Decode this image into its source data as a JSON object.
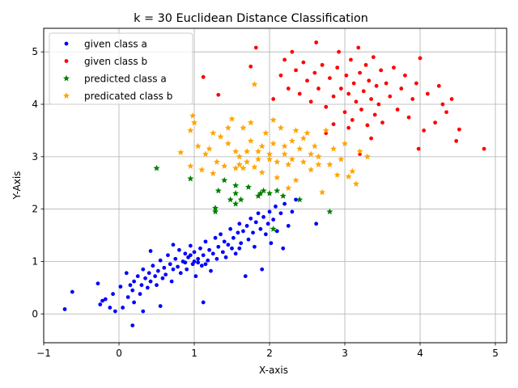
{
  "chart_data": {
    "type": "scatter",
    "title": "k = 30 Euclidean Distance Classification",
    "xlabel": "X-axis",
    "ylabel": "Y-Axis",
    "xlim": [
      -1,
      5.15
    ],
    "ylim": [
      -0.55,
      5.45
    ],
    "xticks": [
      -1,
      0,
      1,
      2,
      3,
      4,
      5
    ],
    "yticks": [
      0,
      1,
      2,
      3,
      4,
      5
    ],
    "xtick_labels": [
      "−1",
      "0",
      "1",
      "2",
      "3",
      "4",
      "5"
    ],
    "ytick_labels": [
      "0",
      "1",
      "2",
      "3",
      "4",
      "5"
    ],
    "grid": true,
    "legend_position": "upper-left",
    "series": [
      {
        "name": "given class a",
        "marker": "dot",
        "color": "#0000ff",
        "points": [
          [
            -0.72,
            0.09
          ],
          [
            -0.62,
            0.42
          ],
          [
            -0.28,
            0.58
          ],
          [
            -0.25,
            0.18
          ],
          [
            -0.22,
            0.25
          ],
          [
            -0.18,
            0.28
          ],
          [
            -0.12,
            0.12
          ],
          [
            -0.08,
            0.38
          ],
          [
            -0.05,
            0.05
          ],
          [
            0.02,
            0.52
          ],
          [
            0.05,
            0.12
          ],
          [
            0.1,
            0.78
          ],
          [
            0.12,
            0.32
          ],
          [
            0.15,
            0.55
          ],
          [
            0.18,
            0.45
          ],
          [
            0.2,
            0.22
          ],
          [
            0.2,
            0.62
          ],
          [
            0.25,
            0.72
          ],
          [
            0.28,
            0.38
          ],
          [
            0.3,
            0.55
          ],
          [
            0.32,
            0.85
          ],
          [
            0.35,
            0.68
          ],
          [
            0.38,
            0.5
          ],
          [
            0.4,
            0.78
          ],
          [
            0.42,
            0.62
          ],
          [
            0.45,
            0.92
          ],
          [
            0.48,
            0.72
          ],
          [
            0.5,
            0.55
          ],
          [
            0.52,
            0.82
          ],
          [
            0.55,
            1.02
          ],
          [
            0.58,
            0.68
          ],
          [
            0.6,
            0.88
          ],
          [
            0.62,
            0.75
          ],
          [
            0.65,
            1.12
          ],
          [
            0.68,
            0.95
          ],
          [
            0.7,
            0.62
          ],
          [
            0.72,
            0.85
          ],
          [
            0.75,
            1.05
          ],
          [
            0.78,
            0.9
          ],
          [
            0.8,
            1.22
          ],
          [
            0.82,
            0.78
          ],
          [
            0.85,
            1.0
          ],
          [
            0.88,
            1.15
          ],
          [
            0.9,
            0.85
          ],
          [
            0.92,
            1.08
          ],
          [
            0.95,
            1.3
          ],
          [
            0.98,
            0.95
          ],
          [
            1.0,
            1.18
          ],
          [
            1.02,
            0.72
          ],
          [
            1.05,
            1.05
          ],
          [
            1.08,
            1.25
          ],
          [
            1.1,
            0.92
          ],
          [
            1.12,
            1.12
          ],
          [
            1.15,
            1.38
          ],
          [
            1.18,
            1.02
          ],
          [
            1.2,
            1.22
          ],
          [
            1.22,
            0.82
          ],
          [
            1.25,
            1.15
          ],
          [
            1.28,
            1.45
          ],
          [
            1.3,
            1.05
          ],
          [
            1.32,
            1.28
          ],
          [
            1.35,
            1.52
          ],
          [
            1.38,
            1.18
          ],
          [
            1.4,
            1.38
          ],
          [
            1.42,
            1.08
          ],
          [
            1.45,
            1.32
          ],
          [
            1.48,
            1.62
          ],
          [
            1.5,
            1.25
          ],
          [
            1.52,
            1.45
          ],
          [
            1.55,
            1.15
          ],
          [
            1.58,
            1.55
          ],
          [
            1.6,
            1.72
          ],
          [
            1.62,
            1.35
          ],
          [
            1.65,
            1.58
          ],
          [
            1.68,
            0.72
          ],
          [
            1.7,
            1.68
          ],
          [
            1.72,
            1.42
          ],
          [
            1.75,
            1.82
          ],
          [
            1.78,
            1.55
          ],
          [
            1.8,
            1.28
          ],
          [
            1.82,
            1.75
          ],
          [
            1.85,
            1.92
          ],
          [
            1.88,
            1.62
          ],
          [
            1.9,
            0.85
          ],
          [
            1.92,
            1.85
          ],
          [
            1.95,
            1.52
          ],
          [
            1.98,
            1.72
          ],
          [
            2.0,
            1.95
          ],
          [
            2.02,
            1.35
          ],
          [
            2.05,
            1.8
          ],
          [
            2.08,
            2.05
          ],
          [
            2.1,
            1.58
          ],
          [
            2.15,
            1.92
          ],
          [
            2.18,
            1.25
          ],
          [
            2.2,
            2.1
          ],
          [
            2.25,
            1.68
          ],
          [
            2.3,
            1.95
          ],
          [
            2.35,
            2.18
          ],
          [
            2.62,
            1.72
          ],
          [
            0.18,
            -0.22
          ],
          [
            0.32,
            0.05
          ],
          [
            0.55,
            0.15
          ],
          [
            1.12,
            0.22
          ],
          [
            0.42,
            1.2
          ],
          [
            0.72,
            1.32
          ],
          [
            1.6,
            1.25
          ],
          [
            1.0,
            1.0
          ],
          [
            1.05,
            0.98
          ],
          [
            0.95,
            1.12
          ],
          [
            1.15,
            0.95
          ],
          [
            0.88,
            0.98
          ]
        ]
      },
      {
        "name": "given class b",
        "marker": "dot",
        "color": "#ff0000",
        "points": [
          [
            1.12,
            4.52
          ],
          [
            1.32,
            4.18
          ],
          [
            1.75,
            4.72
          ],
          [
            1.82,
            5.08
          ],
          [
            2.05,
            4.1
          ],
          [
            2.15,
            4.55
          ],
          [
            2.2,
            4.85
          ],
          [
            2.25,
            4.3
          ],
          [
            2.3,
            5.0
          ],
          [
            2.35,
            4.65
          ],
          [
            2.4,
            4.2
          ],
          [
            2.45,
            4.8
          ],
          [
            2.5,
            4.45
          ],
          [
            2.55,
            4.05
          ],
          [
            2.6,
            4.6
          ],
          [
            2.62,
            5.18
          ],
          [
            2.65,
            4.3
          ],
          [
            2.7,
            4.75
          ],
          [
            2.75,
            3.95
          ],
          [
            2.8,
            4.5
          ],
          [
            2.85,
            4.15
          ],
          [
            2.9,
            4.7
          ],
          [
            2.92,
            5.0
          ],
          [
            2.95,
            4.3
          ],
          [
            3.0,
            3.85
          ],
          [
            3.02,
            4.55
          ],
          [
            3.05,
            4.2
          ],
          [
            3.08,
            4.85
          ],
          [
            3.1,
            3.7
          ],
          [
            3.12,
            4.4
          ],
          [
            3.15,
            4.05
          ],
          [
            3.18,
            5.08
          ],
          [
            3.2,
            4.6
          ],
          [
            3.22,
            3.9
          ],
          [
            3.25,
            4.25
          ],
          [
            3.28,
            4.75
          ],
          [
            3.3,
            3.6
          ],
          [
            3.32,
            4.45
          ],
          [
            3.35,
            4.1
          ],
          [
            3.38,
            4.9
          ],
          [
            3.4,
            3.8
          ],
          [
            3.42,
            4.35
          ],
          [
            3.45,
            4.0
          ],
          [
            3.48,
            4.65
          ],
          [
            3.5,
            3.65
          ],
          [
            3.55,
            4.4
          ],
          [
            3.6,
            4.15
          ],
          [
            3.65,
            4.7
          ],
          [
            3.7,
            3.9
          ],
          [
            3.75,
            4.3
          ],
          [
            3.8,
            4.55
          ],
          [
            3.85,
            3.75
          ],
          [
            3.9,
            4.1
          ],
          [
            3.95,
            4.4
          ],
          [
            3.98,
            3.15
          ],
          [
            4.0,
            4.88
          ],
          [
            4.05,
            3.5
          ],
          [
            4.1,
            4.2
          ],
          [
            4.2,
            3.65
          ],
          [
            4.25,
            4.35
          ],
          [
            4.3,
            4.0
          ],
          [
            4.35,
            3.85
          ],
          [
            4.42,
            4.1
          ],
          [
            4.48,
            3.3
          ],
          [
            4.52,
            3.52
          ],
          [
            4.85,
            3.15
          ],
          [
            3.2,
            3.05
          ],
          [
            2.85,
            3.62
          ],
          [
            2.75,
            3.45
          ],
          [
            3.05,
            3.55
          ],
          [
            3.35,
            3.35
          ]
        ]
      },
      {
        "name": "predicted class a",
        "marker": "star",
        "color": "#008000",
        "points": [
          [
            0.5,
            2.78
          ],
          [
            0.95,
            2.58
          ],
          [
            1.28,
            1.95
          ],
          [
            1.28,
            2.02
          ],
          [
            1.32,
            2.35
          ],
          [
            1.4,
            2.55
          ],
          [
            1.48,
            2.18
          ],
          [
            1.55,
            2.1
          ],
          [
            1.55,
            2.3
          ],
          [
            1.55,
            2.45
          ],
          [
            1.62,
            2.18
          ],
          [
            1.72,
            2.42
          ],
          [
            1.85,
            2.25
          ],
          [
            1.88,
            2.3
          ],
          [
            1.92,
            2.35
          ],
          [
            2.0,
            2.3
          ],
          [
            2.05,
            1.62
          ],
          [
            2.1,
            2.35
          ],
          [
            2.18,
            2.25
          ],
          [
            2.4,
            2.18
          ],
          [
            2.8,
            1.95
          ]
        ]
      },
      {
        "name": "predicated class b",
        "marker": "star",
        "color": "#ffa500",
        "points": [
          [
            0.82,
            3.08
          ],
          [
            0.95,
            2.82
          ],
          [
            0.95,
            3.5
          ],
          [
            0.98,
            3.78
          ],
          [
            1.0,
            3.65
          ],
          [
            1.05,
            3.2
          ],
          [
            1.1,
            2.75
          ],
          [
            1.15,
            3.05
          ],
          [
            1.2,
            3.15
          ],
          [
            1.25,
            3.45
          ],
          [
            1.3,
            2.9
          ],
          [
            1.35,
            3.38
          ],
          [
            1.4,
            2.82
          ],
          [
            1.45,
            3.25
          ],
          [
            1.5,
            3.72
          ],
          [
            1.55,
            2.78
          ],
          [
            1.6,
            3.0
          ],
          [
            1.65,
            3.55
          ],
          [
            1.7,
            2.9
          ],
          [
            1.75,
            3.3
          ],
          [
            1.8,
            4.38
          ],
          [
            1.85,
            3.1
          ],
          [
            1.9,
            2.7
          ],
          [
            1.95,
            3.45
          ],
          [
            2.0,
            2.95
          ],
          [
            2.05,
            3.25
          ],
          [
            2.1,
            2.6
          ],
          [
            2.15,
            3.55
          ],
          [
            2.2,
            3.05
          ],
          [
            2.25,
            2.85
          ],
          [
            2.3,
            3.3
          ],
          [
            2.35,
            2.55
          ],
          [
            2.4,
            3.15
          ],
          [
            2.45,
            2.9
          ],
          [
            2.5,
            3.45
          ],
          [
            2.55,
            2.75
          ],
          [
            2.6,
            3.2
          ],
          [
            2.65,
            3.0
          ],
          [
            2.7,
            2.32
          ],
          [
            2.75,
            3.5
          ],
          [
            2.8,
            2.85
          ],
          [
            2.85,
            3.15
          ],
          [
            2.9,
            2.65
          ],
          [
            2.95,
            2.95
          ],
          [
            3.0,
            3.25
          ],
          [
            3.05,
            2.62
          ],
          [
            3.1,
            2.72
          ],
          [
            3.15,
            2.48
          ],
          [
            3.2,
            3.1
          ],
          [
            3.3,
            3.0
          ],
          [
            1.6,
            2.85
          ],
          [
            1.7,
            3.1
          ],
          [
            1.8,
            2.8
          ],
          [
            1.9,
            3.2
          ],
          [
            2.0,
            3.05
          ],
          [
            2.1,
            2.9
          ],
          [
            2.2,
            3.2
          ],
          [
            2.3,
            2.95
          ],
          [
            1.55,
            3.1
          ],
          [
            1.65,
            2.78
          ],
          [
            2.45,
            3.35
          ],
          [
            2.55,
            3.05
          ],
          [
            1.45,
            3.55
          ],
          [
            1.75,
            3.65
          ],
          [
            2.05,
            3.7
          ],
          [
            2.35,
            3.5
          ],
          [
            1.25,
            2.68
          ],
          [
            2.25,
            2.4
          ],
          [
            2.65,
            2.85
          ],
          [
            1.85,
            2.95
          ]
        ]
      }
    ]
  }
}
